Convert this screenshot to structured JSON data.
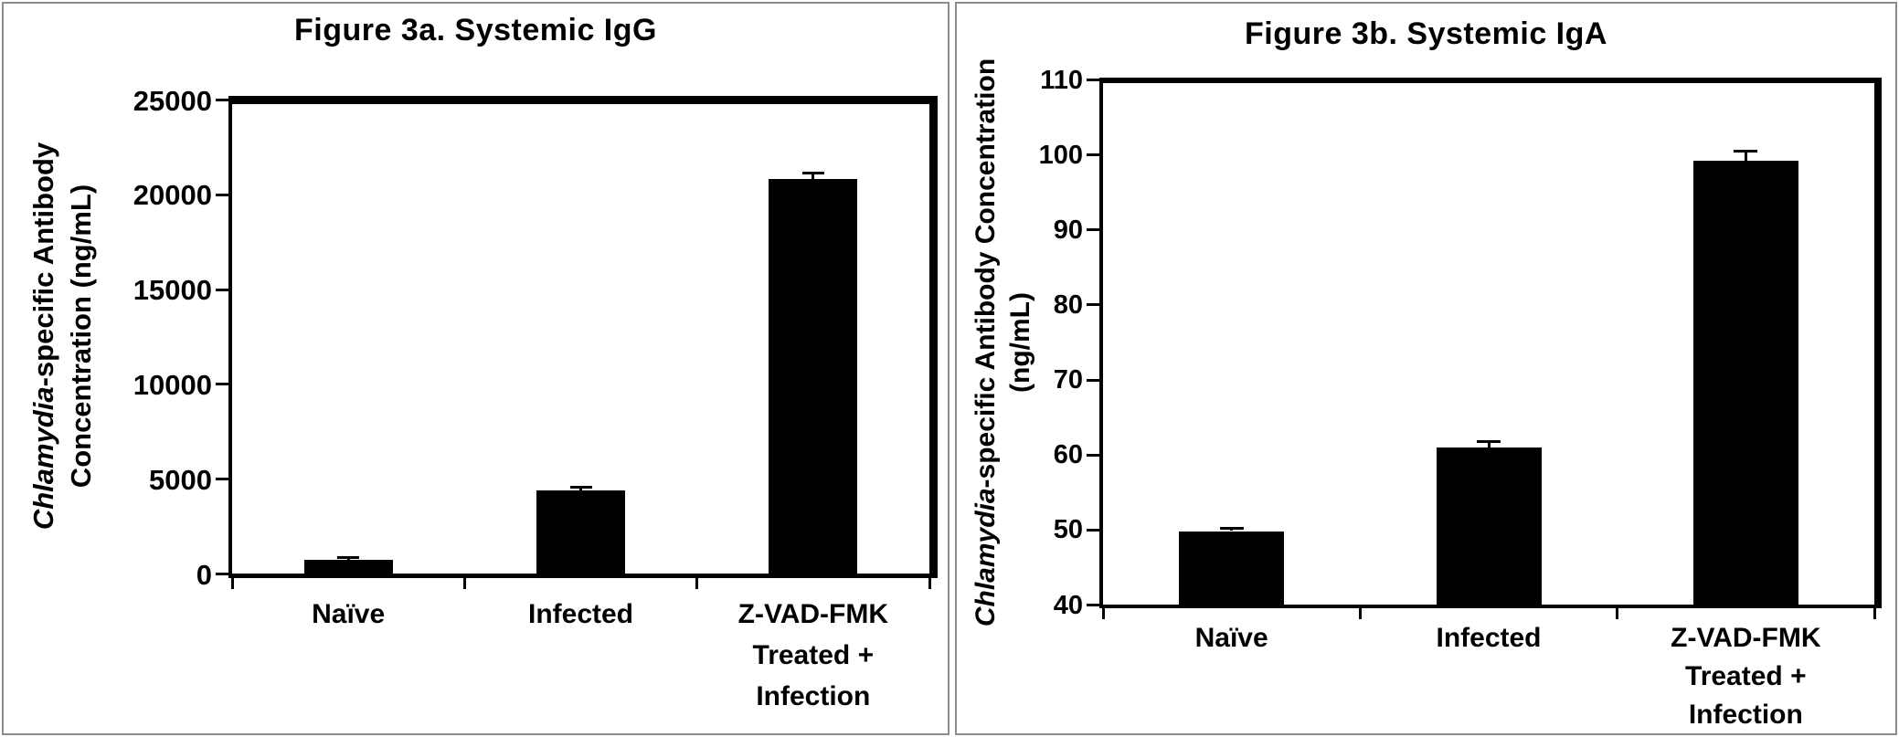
{
  "figure_caption_context": "Two-panel bar figure",
  "chart_data": [
    {
      "type": "bar",
      "title": "Figure 3a. Systemic IgG",
      "ylabel": "Chlamydia-specific Antibody Concentration (ng/mL)",
      "ylabel_lines": [
        [
          {
            "text": "Chlamydia",
            "italic": true
          },
          {
            "text": "-specific Antibody",
            "italic": false
          }
        ],
        [
          {
            "text": "Concentration (ng/mL)",
            "italic": false
          }
        ]
      ],
      "xlabel": "",
      "categories": [
        "Naïve",
        "Infected",
        "Z-VAD-FMK Treated + Infection"
      ],
      "category_label_lines": [
        [
          "Naïve"
        ],
        [
          "Infected"
        ],
        [
          "Z-VAD-FMK",
          "Treated +",
          "Infection"
        ]
      ],
      "values": [
        730,
        4400,
        20800
      ],
      "error_bars": [
        100,
        130,
        280
      ],
      "ylim": [
        0,
        25000
      ],
      "yticks": [
        0,
        5000,
        10000,
        15000,
        20000,
        25000
      ],
      "bar_color": "#000000",
      "grid": false,
      "legend_position": "none"
    },
    {
      "type": "bar",
      "title": "Figure 3b. Systemic IgA",
      "ylabel": "Chlamydia-specific Antibody Concentration (ng/mL)",
      "ylabel_lines": [
        [
          {
            "text": "Chlamydia",
            "italic": true
          },
          {
            "text": "-specific Antibody Concentration",
            "italic": false
          }
        ],
        [
          {
            "text": "(ng/mL)",
            "italic": false
          }
        ]
      ],
      "xlabel": "",
      "categories": [
        "Naïve",
        "Infected",
        "Z-VAD-FMK Treated + Infection"
      ],
      "category_label_lines": [
        [
          "Naïve"
        ],
        [
          "Infected"
        ],
        [
          "Z-VAD-FMK",
          "Treated +",
          "Infection"
        ]
      ],
      "values": [
        49.8,
        61,
        99.2
      ],
      "error_bars": [
        0.3,
        0.7,
        1.2
      ],
      "ylim": [
        40,
        110
      ],
      "yticks": [
        40,
        50,
        60,
        70,
        80,
        90,
        100,
        110
      ],
      "bar_color": "#000000",
      "grid": false,
      "legend_position": "none"
    }
  ]
}
